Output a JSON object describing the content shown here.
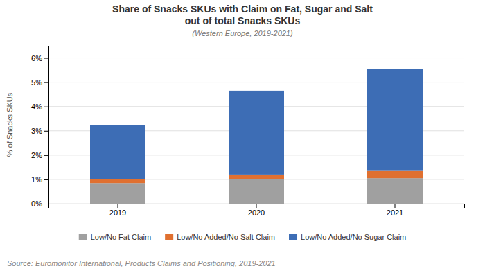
{
  "chart_data": {
    "type": "bar",
    "stacked": true,
    "title": [
      "Share of Snacks SKUs with Claim on Fat, Sugar and Salt",
      "out of total Snacks SKUs"
    ],
    "subtitle": "(Western Europe, 2019-2021)",
    "y_label": "% of Snacks SKUs",
    "annotations": [
      "Source: Euromonitor International, Products Claims and Positioning, 2019-2021"
    ],
    "categories": [
      "2019",
      "2020",
      "2021"
    ],
    "series": [
      {
        "name": "Low/No Fat Claim",
        "color": "#a0a0a0",
        "values": [
          0.0085,
          0.01,
          0.0105
        ]
      },
      {
        "name": "Low/No Added/No Salt Claim",
        "color": "#e07030",
        "values": [
          0.0015,
          0.002,
          0.003
        ]
      },
      {
        "name": "Low/No Added/No Sugar Claim",
        "color": "#3d6db5",
        "values": [
          0.0225,
          0.0345,
          0.042
        ]
      }
    ],
    "ylim": [
      0,
      0.065
    ],
    "yticks": [
      {
        "value": 0.0,
        "label": "0%"
      },
      {
        "value": 0.01,
        "label": "1%"
      },
      {
        "value": 0.02,
        "label": "2%"
      },
      {
        "value": 0.03,
        "label": "3%"
      },
      {
        "value": 0.04,
        "label": "4%"
      },
      {
        "value": 0.05,
        "label": "5%"
      },
      {
        "value": 0.06,
        "label": "6%"
      }
    ],
    "grid": true,
    "legend": "bottom"
  }
}
